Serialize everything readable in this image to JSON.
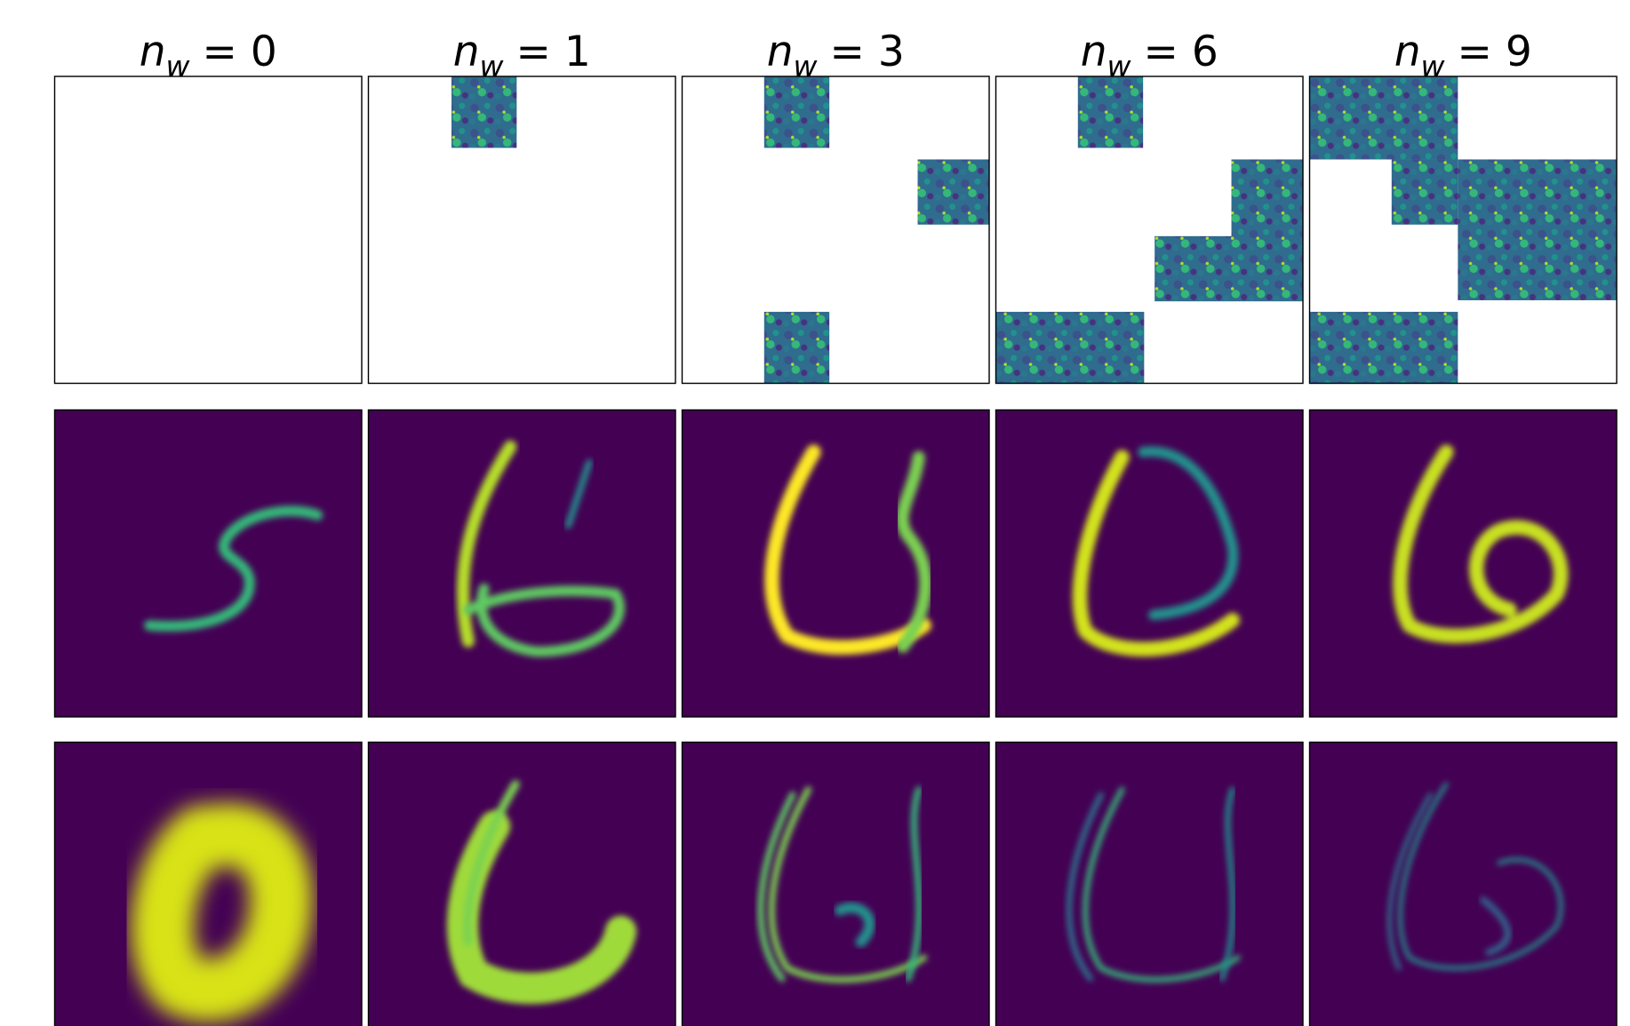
{
  "columns": [
    {
      "symbol": "n",
      "subscript": "w",
      "equals": "= 0"
    },
    {
      "symbol": "n",
      "subscript": "w",
      "equals": "= 1"
    },
    {
      "symbol": "n",
      "subscript": "w",
      "equals": "= 3"
    },
    {
      "symbol": "n",
      "subscript": "w",
      "equals": "= 6"
    },
    {
      "symbol": "n",
      "subscript": "w",
      "equals": "= 9"
    }
  ]
}
